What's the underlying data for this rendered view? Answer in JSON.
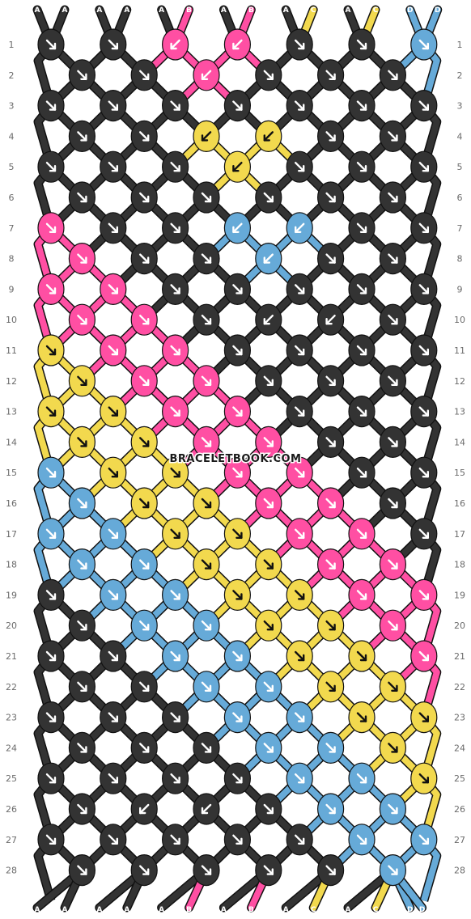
{
  "watermark": "BRACELETBOOK.COM",
  "colors": {
    "A": "#333333",
    "B": "#ff4fa3",
    "C": "#f2d94e",
    "D": "#66aad8"
  },
  "strands_top": [
    "A",
    "A",
    "A",
    "A",
    "A",
    "B",
    "A",
    "B",
    "A",
    "C",
    "A",
    "C",
    "D",
    "D"
  ],
  "strands_bottom": [
    "A",
    "A",
    "A",
    "A",
    "A",
    "B",
    "A",
    "B",
    "A",
    "C",
    "A",
    "C",
    "D",
    "D"
  ],
  "row_labels": [
    "1",
    "2",
    "3",
    "4",
    "5",
    "6",
    "7",
    "8",
    "9",
    "10",
    "11",
    "12",
    "13",
    "14",
    "15",
    "16",
    "17",
    "18",
    "19",
    "20",
    "21",
    "22",
    "23",
    "24",
    "25",
    "26",
    "27",
    "28"
  ],
  "knots": [
    [
      {
        "c": "A",
        "d": "r"
      },
      {
        "c": "A",
        "d": "r"
      },
      {
        "c": "B",
        "d": "l"
      },
      {
        "c": "B",
        "d": "l"
      },
      {
        "c": "A",
        "d": "r"
      },
      {
        "c": "A",
        "d": "r"
      },
      {
        "c": "D",
        "d": "r"
      }
    ],
    [
      {
        "c": "A",
        "d": "r"
      },
      {
        "c": "A",
        "d": "r"
      },
      {
        "c": "B",
        "d": "l"
      },
      {
        "c": "A",
        "d": "r"
      },
      {
        "c": "A",
        "d": "r"
      },
      {
        "c": "A",
        "d": "r"
      }
    ],
    [
      {
        "c": "A",
        "d": "r"
      },
      {
        "c": "A",
        "d": "r"
      },
      {
        "c": "A",
        "d": "r"
      },
      {
        "c": "A",
        "d": "r"
      },
      {
        "c": "A",
        "d": "r"
      },
      {
        "c": "A",
        "d": "r"
      },
      {
        "c": "A",
        "d": "r"
      }
    ],
    [
      {
        "c": "A",
        "d": "r"
      },
      {
        "c": "A",
        "d": "r"
      },
      {
        "c": "C",
        "d": "l"
      },
      {
        "c": "C",
        "d": "l"
      },
      {
        "c": "A",
        "d": "r"
      },
      {
        "c": "A",
        "d": "r"
      }
    ],
    [
      {
        "c": "A",
        "d": "r"
      },
      {
        "c": "A",
        "d": "r"
      },
      {
        "c": "A",
        "d": "r"
      },
      {
        "c": "C",
        "d": "l"
      },
      {
        "c": "A",
        "d": "r"
      },
      {
        "c": "A",
        "d": "r"
      },
      {
        "c": "A",
        "d": "r"
      }
    ],
    [
      {
        "c": "A",
        "d": "r"
      },
      {
        "c": "A",
        "d": "r"
      },
      {
        "c": "A",
        "d": "r"
      },
      {
        "c": "A",
        "d": "r"
      },
      {
        "c": "A",
        "d": "r"
      },
      {
        "c": "A",
        "d": "r"
      }
    ],
    [
      {
        "c": "B",
        "d": "r"
      },
      {
        "c": "A",
        "d": "r"
      },
      {
        "c": "A",
        "d": "r"
      },
      {
        "c": "D",
        "d": "l"
      },
      {
        "c": "D",
        "d": "l"
      },
      {
        "c": "A",
        "d": "r"
      },
      {
        "c": "A",
        "d": "r"
      }
    ],
    [
      {
        "c": "B",
        "d": "r"
      },
      {
        "c": "A",
        "d": "r"
      },
      {
        "c": "A",
        "d": "r"
      },
      {
        "c": "D",
        "d": "l"
      },
      {
        "c": "A",
        "d": "r"
      },
      {
        "c": "A",
        "d": "r"
      }
    ],
    [
      {
        "c": "B",
        "d": "r"
      },
      {
        "c": "B",
        "d": "r"
      },
      {
        "c": "A",
        "d": "r"
      },
      {
        "c": "A",
        "d": "r"
      },
      {
        "c": "A",
        "d": "r"
      },
      {
        "c": "A",
        "d": "r"
      },
      {
        "c": "A",
        "d": "r"
      }
    ],
    [
      {
        "c": "B",
        "d": "r"
      },
      {
        "c": "B",
        "d": "r"
      },
      {
        "c": "A",
        "d": "r"
      },
      {
        "c": "A",
        "d": "l"
      },
      {
        "c": "A",
        "d": "l"
      },
      {
        "c": "A",
        "d": "r"
      }
    ],
    [
      {
        "c": "C",
        "d": "r"
      },
      {
        "c": "B",
        "d": "r"
      },
      {
        "c": "B",
        "d": "r"
      },
      {
        "c": "A",
        "d": "r"
      },
      {
        "c": "A",
        "d": "r"
      },
      {
        "c": "A",
        "d": "r"
      },
      {
        "c": "A",
        "d": "r"
      }
    ],
    [
      {
        "c": "C",
        "d": "r"
      },
      {
        "c": "B",
        "d": "r"
      },
      {
        "c": "B",
        "d": "r"
      },
      {
        "c": "A",
        "d": "r"
      },
      {
        "c": "A",
        "d": "r"
      },
      {
        "c": "A",
        "d": "r"
      }
    ],
    [
      {
        "c": "C",
        "d": "r"
      },
      {
        "c": "C",
        "d": "r"
      },
      {
        "c": "B",
        "d": "r"
      },
      {
        "c": "B",
        "d": "r"
      },
      {
        "c": "A",
        "d": "r"
      },
      {
        "c": "A",
        "d": "r"
      },
      {
        "c": "A",
        "d": "r"
      }
    ],
    [
      {
        "c": "C",
        "d": "r"
      },
      {
        "c": "C",
        "d": "r"
      },
      {
        "c": "B",
        "d": "r"
      },
      {
        "c": "B",
        "d": "r"
      },
      {
        "c": "A",
        "d": "r"
      },
      {
        "c": "A",
        "d": "r"
      }
    ],
    [
      {
        "c": "D",
        "d": "r"
      },
      {
        "c": "C",
        "d": "r"
      },
      {
        "c": "C",
        "d": "r"
      },
      {
        "c": "B",
        "d": "r"
      },
      {
        "c": "B",
        "d": "r"
      },
      {
        "c": "A",
        "d": "r"
      },
      {
        "c": "A",
        "d": "r"
      }
    ],
    [
      {
        "c": "D",
        "d": "r"
      },
      {
        "c": "C",
        "d": "r"
      },
      {
        "c": "C",
        "d": "r"
      },
      {
        "c": "B",
        "d": "r"
      },
      {
        "c": "B",
        "d": "r"
      },
      {
        "c": "A",
        "d": "r"
      }
    ],
    [
      {
        "c": "D",
        "d": "r"
      },
      {
        "c": "D",
        "d": "r"
      },
      {
        "c": "C",
        "d": "r"
      },
      {
        "c": "C",
        "d": "r"
      },
      {
        "c": "B",
        "d": "r"
      },
      {
        "c": "B",
        "d": "r"
      },
      {
        "c": "A",
        "d": "r"
      }
    ],
    [
      {
        "c": "D",
        "d": "r"
      },
      {
        "c": "D",
        "d": "r"
      },
      {
        "c": "C",
        "d": "r"
      },
      {
        "c": "C",
        "d": "r"
      },
      {
        "c": "B",
        "d": "r"
      },
      {
        "c": "B",
        "d": "r"
      }
    ],
    [
      {
        "c": "A",
        "d": "r"
      },
      {
        "c": "D",
        "d": "r"
      },
      {
        "c": "D",
        "d": "r"
      },
      {
        "c": "C",
        "d": "r"
      },
      {
        "c": "C",
        "d": "r"
      },
      {
        "c": "B",
        "d": "r"
      },
      {
        "c": "B",
        "d": "r"
      }
    ],
    [
      {
        "c": "A",
        "d": "r"
      },
      {
        "c": "D",
        "d": "r"
      },
      {
        "c": "D",
        "d": "r"
      },
      {
        "c": "C",
        "d": "r"
      },
      {
        "c": "C",
        "d": "r"
      },
      {
        "c": "B",
        "d": "r"
      }
    ],
    [
      {
        "c": "A",
        "d": "r"
      },
      {
        "c": "A",
        "d": "r"
      },
      {
        "c": "D",
        "d": "r"
      },
      {
        "c": "D",
        "d": "r"
      },
      {
        "c": "C",
        "d": "r"
      },
      {
        "c": "C",
        "d": "r"
      },
      {
        "c": "B",
        "d": "r"
      }
    ],
    [
      {
        "c": "A",
        "d": "r"
      },
      {
        "c": "A",
        "d": "r"
      },
      {
        "c": "D",
        "d": "r"
      },
      {
        "c": "D",
        "d": "r"
      },
      {
        "c": "C",
        "d": "r"
      },
      {
        "c": "C",
        "d": "r"
      }
    ],
    [
      {
        "c": "A",
        "d": "r"
      },
      {
        "c": "A",
        "d": "r"
      },
      {
        "c": "A",
        "d": "r"
      },
      {
        "c": "D",
        "d": "r"
      },
      {
        "c": "D",
        "d": "r"
      },
      {
        "c": "C",
        "d": "r"
      },
      {
        "c": "C",
        "d": "r"
      }
    ],
    [
      {
        "c": "A",
        "d": "r"
      },
      {
        "c": "A",
        "d": "r"
      },
      {
        "c": "A",
        "d": "r"
      },
      {
        "c": "D",
        "d": "r"
      },
      {
        "c": "D",
        "d": "r"
      },
      {
        "c": "C",
        "d": "r"
      }
    ],
    [
      {
        "c": "A",
        "d": "r"
      },
      {
        "c": "A",
        "d": "r"
      },
      {
        "c": "A",
        "d": "r"
      },
      {
        "c": "A",
        "d": "r"
      },
      {
        "c": "D",
        "d": "r"
      },
      {
        "c": "D",
        "d": "r"
      },
      {
        "c": "C",
        "d": "r"
      }
    ],
    [
      {
        "c": "A",
        "d": "r"
      },
      {
        "c": "A",
        "d": "l"
      },
      {
        "c": "A",
        "d": "l"
      },
      {
        "c": "A",
        "d": "r"
      },
      {
        "c": "D",
        "d": "r"
      },
      {
        "c": "D",
        "d": "r"
      }
    ],
    [
      {
        "c": "A",
        "d": "r"
      },
      {
        "c": "A",
        "d": "r"
      },
      {
        "c": "A",
        "d": "r"
      },
      {
        "c": "A",
        "d": "r"
      },
      {
        "c": "A",
        "d": "r"
      },
      {
        "c": "D",
        "d": "r"
      },
      {
        "c": "D",
        "d": "r"
      }
    ],
    [
      {
        "c": "A",
        "d": "r"
      },
      {
        "c": "A",
        "d": "r"
      },
      {
        "c": "A",
        "d": "r"
      },
      {
        "c": "A",
        "d": "r"
      },
      {
        "c": "A",
        "d": "r"
      },
      {
        "c": "D",
        "d": "r"
      }
    ]
  ]
}
